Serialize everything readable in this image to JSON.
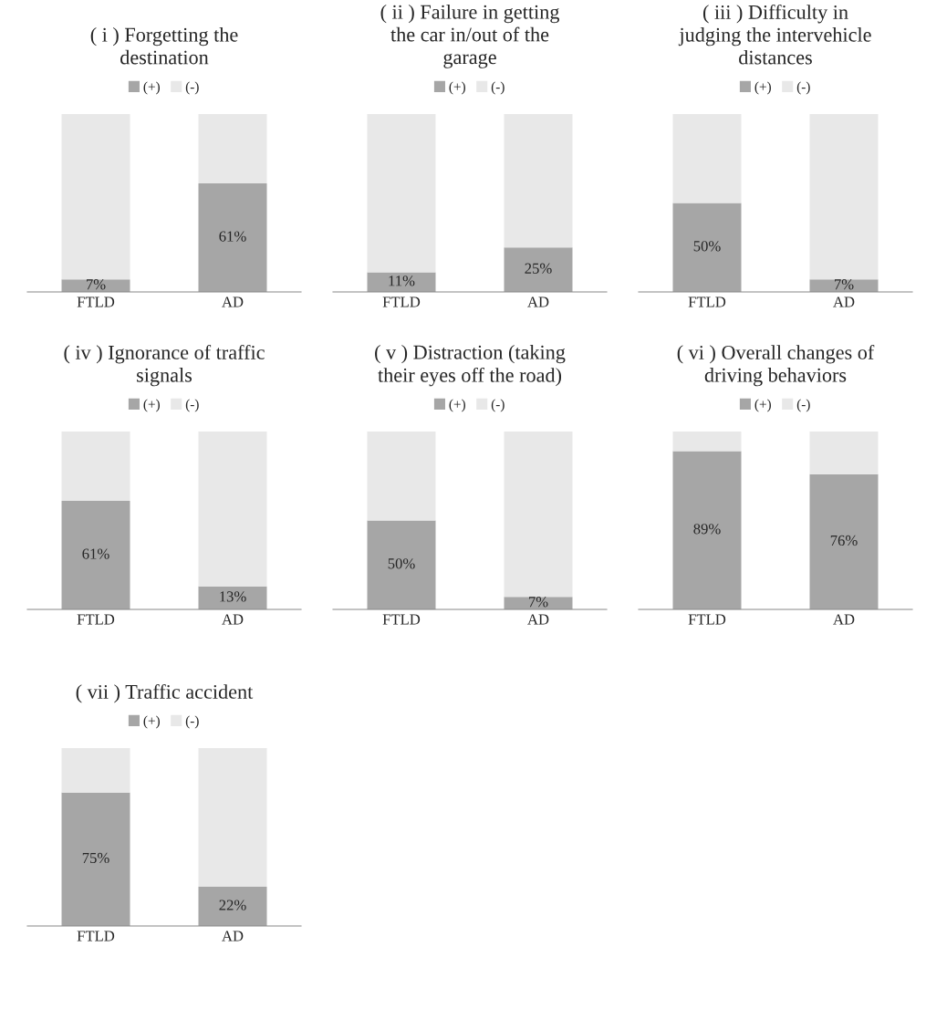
{
  "chart_data": [
    {
      "type": "bar",
      "title": "( i ) Forgetting the\ndestination",
      "categories": [
        "FTLD",
        "AD"
      ],
      "stacked": true,
      "legend": "top",
      "tick_labels": "x",
      "ylim": [
        0,
        100
      ],
      "series": [
        {
          "name": "(+)",
          "color": "#a6a6a6",
          "values": [
            7,
            61
          ],
          "value_labels": [
            "7%",
            "61%"
          ]
        },
        {
          "name": "(-)",
          "color": "#e8e8e8",
          "values": [
            93,
            39
          ]
        }
      ]
    },
    {
      "type": "bar",
      "title": "( ii ) Failure in getting\nthe car in/out of the\ngarage",
      "categories": [
        "FTLD",
        "AD"
      ],
      "stacked": true,
      "legend": "top",
      "tick_labels": "x",
      "ylim": [
        0,
        100
      ],
      "series": [
        {
          "name": "(+)",
          "color": "#a6a6a6",
          "values": [
            11,
            25
          ],
          "value_labels": [
            "11%",
            "25%"
          ]
        },
        {
          "name": "(-)",
          "color": "#e8e8e8",
          "values": [
            89,
            75
          ]
        }
      ]
    },
    {
      "type": "bar",
      "title": "( iii ) Difficulty in\njudging the intervehicle\ndistances",
      "categories": [
        "FTLD",
        "AD"
      ],
      "stacked": true,
      "legend": "top",
      "tick_labels": "x",
      "ylim": [
        0,
        100
      ],
      "series": [
        {
          "name": "(+)",
          "color": "#a6a6a6",
          "values": [
            50,
            7
          ],
          "value_labels": [
            "50%",
            "7%"
          ]
        },
        {
          "name": "(-)",
          "color": "#e8e8e8",
          "values": [
            50,
            93
          ]
        }
      ]
    },
    {
      "type": "bar",
      "title": "( iv ) Ignorance of traffic\nsignals",
      "categories": [
        "FTLD",
        "AD"
      ],
      "stacked": true,
      "legend": "top",
      "tick_labels": "x",
      "ylim": [
        0,
        100
      ],
      "series": [
        {
          "name": "(+)",
          "color": "#a6a6a6",
          "values": [
            61,
            13
          ],
          "value_labels": [
            "61%",
            "13%"
          ]
        },
        {
          "name": "(-)",
          "color": "#e8e8e8",
          "values": [
            39,
            87
          ]
        }
      ]
    },
    {
      "type": "bar",
      "title": "( v ) Distraction (taking\ntheir eyes off the road)",
      "categories": [
        "FTLD",
        "AD"
      ],
      "stacked": true,
      "legend": "top",
      "tick_labels": "x",
      "ylim": [
        0,
        100
      ],
      "series": [
        {
          "name": "(+)",
          "color": "#a6a6a6",
          "values": [
            50,
            7
          ],
          "value_labels": [
            "50%",
            "7%"
          ]
        },
        {
          "name": "(-)",
          "color": "#e8e8e8",
          "values": [
            50,
            93
          ]
        }
      ]
    },
    {
      "type": "bar",
      "title": "( vi ) Overall changes of\ndriving behaviors",
      "categories": [
        "FTLD",
        "AD"
      ],
      "stacked": true,
      "legend": "top",
      "tick_labels": "x",
      "ylim": [
        0,
        100
      ],
      "series": [
        {
          "name": "(+)",
          "color": "#a6a6a6",
          "values": [
            89,
            76
          ],
          "value_labels": [
            "89%",
            "76%"
          ]
        },
        {
          "name": "(-)",
          "color": "#e8e8e8",
          "values": [
            11,
            24
          ]
        }
      ]
    },
    {
      "type": "bar",
      "title": "( vii ) Traffic accident",
      "categories": [
        "FTLD",
        "AD"
      ],
      "stacked": true,
      "legend": "top",
      "tick_labels": "x",
      "ylim": [
        0,
        100
      ],
      "series": [
        {
          "name": "(+)",
          "color": "#a6a6a6",
          "values": [
            75,
            22
          ],
          "value_labels": [
            "75%",
            "22%"
          ]
        },
        {
          "name": "(-)",
          "color": "#e8e8e8",
          "values": [
            25,
            78
          ]
        }
      ]
    }
  ]
}
